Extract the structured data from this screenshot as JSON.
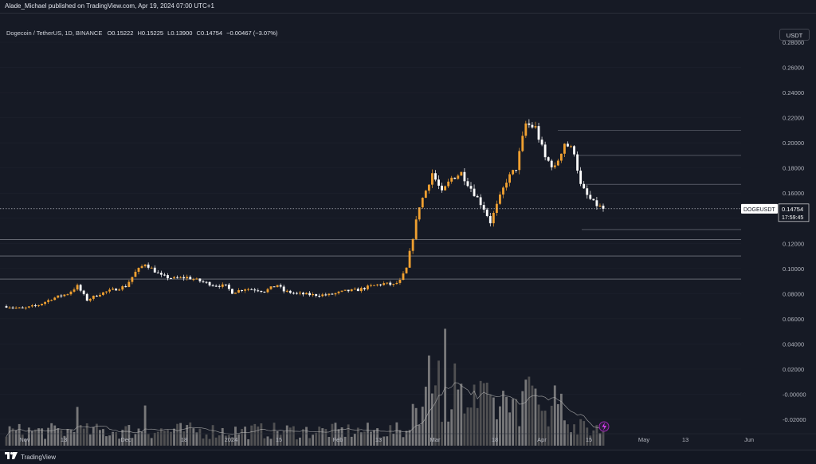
{
  "header": {
    "credit": "Alade_Michael published on TradingView.com, Apr 19, 2024 07:00 UTC+1"
  },
  "legend": {
    "symbol": "Dogecoin / TetherUS, 1D, BINANCE",
    "o_label": "O",
    "o_value": "0.15222",
    "h_label": "H",
    "h_value": "0.15225",
    "l_label": "L",
    "l_value": "0.13900",
    "c_label": "C",
    "c_value": "0.14754",
    "change": "−0.00467 (−3.07%)"
  },
  "currency_button": "USDT",
  "price_label": {
    "ticker": "DOGEUSDT",
    "price": "0.14754",
    "countdown": "17:59:45"
  },
  "footer": {
    "brand": "TradingView"
  },
  "colors": {
    "background": "#161a25",
    "up": "#f0a030",
    "down": "#ffffff",
    "volume_up": "#8a8a8a",
    "volume_down": "#5a5a5a",
    "level_line": "#9598a1",
    "grid": "#2a2e39"
  },
  "chart_data": {
    "type": "candlestick",
    "title": "Dogecoin / TetherUS, 1D, BINANCE",
    "x_tick_labels": [
      "Nov",
      "13",
      "Dec",
      "18",
      "2024",
      "15",
      "Feb",
      "13",
      "Mar",
      "18",
      "Apr",
      "15",
      "May",
      "13",
      "Jun"
    ],
    "y_tick_labels": [
      "0.28000",
      "0.26000",
      "0.24000",
      "0.22000",
      "0.20000",
      "0.18000",
      "0.16000",
      "0.14000",
      "0.12000",
      "0.10000",
      "0.08000",
      "0.06000",
      "0.04000",
      "0.02000",
      "-0.00000",
      "-0.02000"
    ],
    "ylim": [
      -0.03,
      0.29
    ],
    "horizontal_levels": [
      {
        "value": 0.21,
        "label": "0.21000",
        "style": "grey"
      },
      {
        "value": 0.19,
        "label": "0.19000",
        "style": "grey"
      },
      {
        "value": 0.167,
        "label": "0.16700",
        "style": "grey"
      },
      {
        "value": 0.131,
        "label": "0.13100",
        "style": "grey"
      },
      {
        "value": 0.123,
        "label": "0.12300",
        "style": "highlight"
      },
      {
        "value": 0.11,
        "label": "0.11000",
        "style": "highlight"
      },
      {
        "value": 0.0916,
        "label": "0.09160",
        "style": "highlight"
      }
    ],
    "last_price": 0.14754,
    "anchors": [
      [
        0,
        0.07
      ],
      [
        5,
        0.068
      ],
      [
        10,
        0.071
      ],
      [
        14,
        0.076
      ],
      [
        19,
        0.08
      ],
      [
        22,
        0.086
      ],
      [
        25,
        0.075
      ],
      [
        29,
        0.08
      ],
      [
        33,
        0.083
      ],
      [
        37,
        0.086
      ],
      [
        40,
        0.097
      ],
      [
        43,
        0.104
      ],
      [
        45,
        0.1
      ],
      [
        48,
        0.094
      ],
      [
        52,
        0.092
      ],
      [
        56,
        0.093
      ],
      [
        60,
        0.09
      ],
      [
        64,
        0.087
      ],
      [
        68,
        0.086
      ],
      [
        70,
        0.081
      ],
      [
        74,
        0.084
      ],
      [
        78,
        0.083
      ],
      [
        80,
        0.082
      ],
      [
        84,
        0.087
      ],
      [
        86,
        0.082
      ],
      [
        90,
        0.08
      ],
      [
        95,
        0.079
      ],
      [
        100,
        0.079
      ],
      [
        105,
        0.082
      ],
      [
        109,
        0.083
      ],
      [
        113,
        0.086
      ],
      [
        117,
        0.088
      ],
      [
        120,
        0.087
      ],
      [
        122,
        0.09
      ],
      [
        124,
        0.1
      ],
      [
        126,
        0.125
      ],
      [
        128,
        0.15
      ],
      [
        130,
        0.162
      ],
      [
        132,
        0.176
      ],
      [
        135,
        0.16
      ],
      [
        138,
        0.172
      ],
      [
        141,
        0.176
      ],
      [
        145,
        0.16
      ],
      [
        148,
        0.148
      ],
      [
        150,
        0.137
      ],
      [
        152,
        0.15
      ],
      [
        155,
        0.17
      ],
      [
        158,
        0.18
      ],
      [
        161,
        0.215
      ],
      [
        164,
        0.212
      ],
      [
        167,
        0.188
      ],
      [
        170,
        0.18
      ],
      [
        173,
        0.2
      ],
      [
        176,
        0.193
      ],
      [
        178,
        0.166
      ],
      [
        180,
        0.158
      ],
      [
        182,
        0.152
      ],
      [
        185,
        0.14754
      ]
    ]
  }
}
